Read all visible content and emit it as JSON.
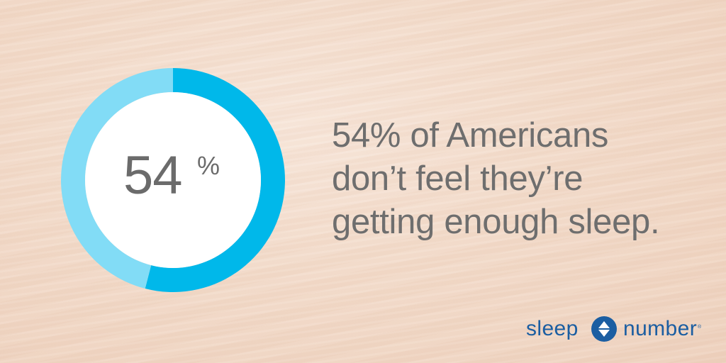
{
  "chart_data": {
    "type": "pie",
    "style": "donut",
    "value": 54,
    "unit": "%",
    "segments": [
      {
        "value": 54,
        "color": "#00b8ea"
      },
      {
        "value": 46,
        "color": "#82dcf6"
      }
    ]
  },
  "center_label": {
    "value": "54",
    "unit": "%"
  },
  "headline": {
    "lines": [
      "54% of Americans",
      "don’t feel they’re",
      "getting enough sleep."
    ]
  },
  "brand": {
    "left": "sleep",
    "right": "number",
    "tm": "®",
    "icon": "up-down-arrows-icon",
    "color": "#1b5ea2"
  }
}
